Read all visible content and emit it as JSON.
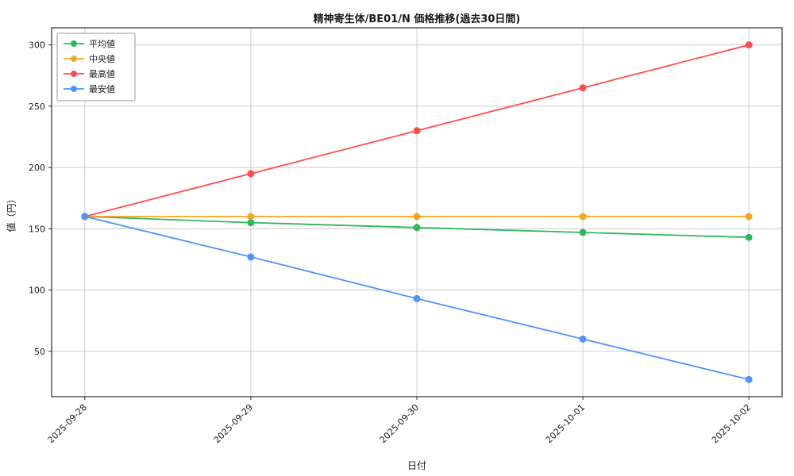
{
  "chart": {
    "title": "精神寄生体/BE01/N 価格推移(過去30日間)",
    "xlabel": "日付",
    "ylabel": "値（円）"
  },
  "chart_data": {
    "type": "line",
    "title": "精神寄生体/BE01/N 価格推移(過去30日間)",
    "xlabel": "日付",
    "ylabel": "値（円）",
    "categories": [
      "2025-09-28",
      "2025-09-29",
      "2025-09-30",
      "2025-10-01",
      "2025-10-02"
    ],
    "series": [
      {
        "name": "平均値",
        "color": "#2eb85c",
        "values": [
          160,
          155,
          151,
          147,
          143
        ]
      },
      {
        "name": "中央値",
        "color": "#f5a623",
        "values": [
          160,
          160,
          160,
          160,
          160
        ]
      },
      {
        "name": "最高値",
        "color": "#ff4d4d",
        "values": [
          160,
          195,
          230,
          265,
          300
        ]
      },
      {
        "name": "最安値",
        "color": "#4d94ff",
        "values": [
          160,
          127,
          93,
          60,
          27
        ]
      }
    ],
    "ylim": [
      13,
      314
    ],
    "yticks": [
      50,
      100,
      150,
      200,
      250,
      300
    ],
    "grid": true,
    "legend_position": "upper left",
    "grid_color": "#cccccc",
    "axis_color": "#2b2b2b",
    "legend_border_color": "#999999"
  }
}
